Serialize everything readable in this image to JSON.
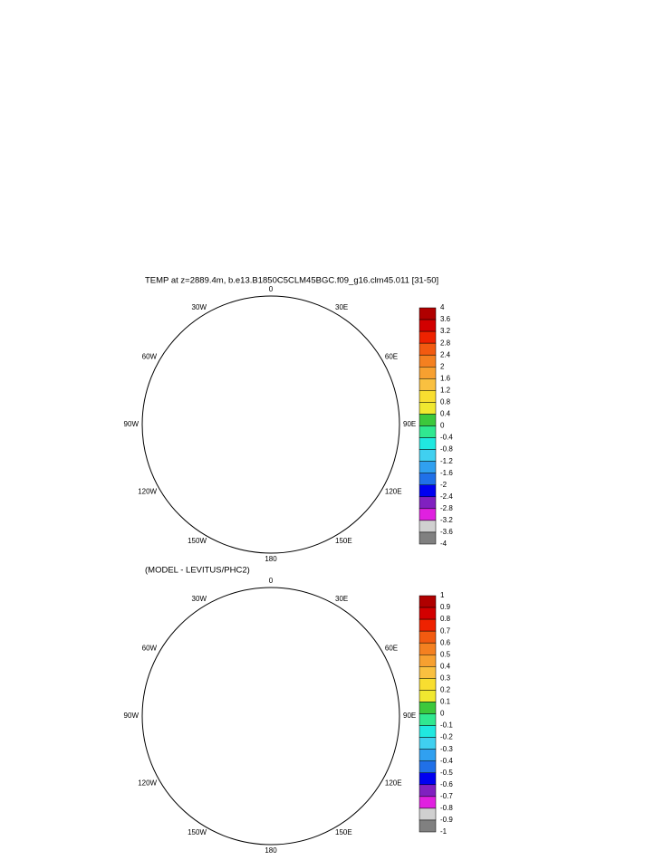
{
  "panels": [
    {
      "title": "TEMP at z=2889.4m, b.e13.B1850C5CLM45BGC.f09_g16.clm45.011 [31-50]",
      "longitude_labels": [
        "0",
        "30E",
        "60E",
        "90E",
        "120E",
        "150E",
        "180",
        "150W",
        "120W",
        "90W",
        "60W",
        "30W"
      ],
      "colorbar": {
        "labels": [
          4,
          3.6,
          3.2,
          2.8,
          2.4,
          2,
          1.6,
          1.2,
          0.8,
          0.4,
          0,
          -0.4,
          -0.8,
          -1.2,
          -1.6,
          -2,
          -2.4,
          -2.8,
          -3.2,
          -3.6,
          -4
        ],
        "colors": [
          "#b00000",
          "#d20000",
          "#ee2200",
          "#f25a10",
          "#f48020",
          "#f7a030",
          "#f9c040",
          "#f8de30",
          "#f0e830",
          "#3cc83c",
          "#30e890",
          "#20e8e0",
          "#40d0f0",
          "#30a0f0",
          "#2070e8",
          "#0000f0",
          "#8020c0",
          "#e020e0",
          "#d0d0d0",
          "#808080"
        ]
      }
    },
    {
      "title": "(MODEL - LEVITUS/PHC2)",
      "longitude_labels": [
        "0",
        "30E",
        "60E",
        "90E",
        "120E",
        "150E",
        "180",
        "150W",
        "120W",
        "90W",
        "60W",
        "30W"
      ],
      "colorbar": {
        "labels": [
          1,
          0.9,
          0.8,
          0.7,
          0.6,
          0.5,
          0.4,
          0.3,
          0.2,
          0.1,
          0,
          -0.1,
          -0.2,
          -0.3,
          -0.4,
          -0.5,
          -0.6,
          -0.7,
          -0.8,
          -0.9,
          -1
        ],
        "colors": [
          "#b00000",
          "#d20000",
          "#ee2200",
          "#f25a10",
          "#f48020",
          "#f7a030",
          "#f9c040",
          "#f8de30",
          "#f0e830",
          "#3cc83c",
          "#30e890",
          "#20e8e0",
          "#40d0f0",
          "#30a0f0",
          "#2070e8",
          "#0000f0",
          "#8020c0",
          "#e020e0",
          "#d0d0d0",
          "#808080"
        ]
      }
    }
  ]
}
